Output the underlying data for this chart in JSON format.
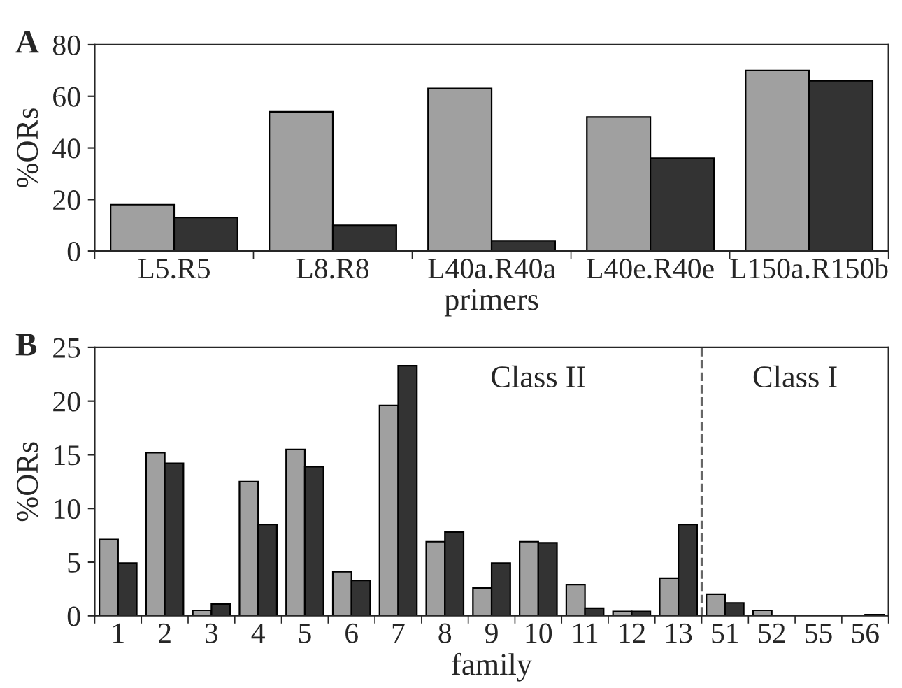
{
  "chart_data": [
    {
      "type": "bar",
      "title": "A",
      "xlabel": "primers",
      "ylabel": "%ORs",
      "categories": [
        "L5.R5",
        "L8.R8",
        "L40a.R40a",
        "L40e.R40e",
        "L150a.R150b"
      ],
      "series": [
        {
          "color": "#a0a0a0",
          "values": [
            18,
            54,
            63,
            52,
            70
          ]
        },
        {
          "color": "#333333",
          "values": [
            13,
            10,
            4,
            36,
            66
          ]
        }
      ],
      "ylim": [
        0,
        80
      ],
      "yticks": [
        0,
        20,
        40,
        60,
        80
      ],
      "grid": false,
      "legend": false
    },
    {
      "type": "bar",
      "title": "B",
      "xlabel": "family",
      "ylabel": "%ORs",
      "categories": [
        "1",
        "2",
        "3",
        "4",
        "5",
        "6",
        "7",
        "8",
        "9",
        "10",
        "11",
        "12",
        "13",
        "51",
        "52",
        "55",
        "56"
      ],
      "series": [
        {
          "color": "#a0a0a0",
          "values": [
            7.1,
            15.2,
            0.5,
            12.5,
            15.5,
            4.1,
            19.6,
            6.9,
            2.6,
            6.9,
            2.9,
            0.4,
            3.5,
            2.0,
            0.5,
            0,
            0
          ]
        },
        {
          "color": "#333333",
          "values": [
            4.9,
            14.2,
            1.1,
            8.5,
            13.9,
            3.3,
            23.3,
            7.8,
            4.9,
            6.8,
            0.7,
            0.4,
            8.5,
            1.2,
            0,
            0,
            0.1
          ]
        }
      ],
      "ylim": [
        0,
        25
      ],
      "yticks": [
        0,
        5,
        10,
        15,
        20,
        25
      ],
      "grid": false,
      "legend": false,
      "annotations": [
        "Class II",
        "Class I"
      ]
    }
  ]
}
